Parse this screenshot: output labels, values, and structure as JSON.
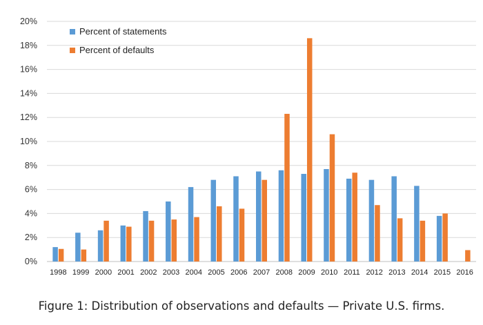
{
  "figure": {
    "caption": "Figure 1: Distribution of observations and defaults — Private U.S. firms."
  },
  "chart_data": {
    "type": "bar",
    "categories": [
      "1998",
      "1999",
      "2000",
      "2001",
      "2002",
      "2003",
      "2004",
      "2005",
      "2006",
      "2007",
      "2008",
      "2009",
      "2010",
      "2011",
      "2012",
      "2013",
      "2014",
      "2015",
      "2016"
    ],
    "series": [
      {
        "name": "Percent of statements",
        "color": "#5b9bd5",
        "values": [
          1.2,
          2.4,
          2.6,
          3.0,
          4.2,
          5.0,
          6.2,
          6.8,
          7.1,
          7.5,
          7.6,
          7.3,
          7.7,
          6.9,
          6.8,
          7.1,
          6.3,
          3.8,
          0.0
        ]
      },
      {
        "name": "Percent of defaults",
        "color": "#ed7d31",
        "values": [
          1.05,
          1.0,
          3.4,
          2.9,
          3.4,
          3.5,
          3.7,
          4.6,
          4.4,
          6.8,
          12.3,
          18.6,
          10.6,
          7.4,
          4.7,
          3.6,
          3.4,
          4.0,
          0.95
        ]
      }
    ],
    "yticks": [
      "0%",
      "2%",
      "4%",
      "6%",
      "8%",
      "10%",
      "12%",
      "14%",
      "16%",
      "18%",
      "20%"
    ],
    "ylim": [
      0,
      20
    ],
    "grid": true,
    "legend": "top-left"
  }
}
